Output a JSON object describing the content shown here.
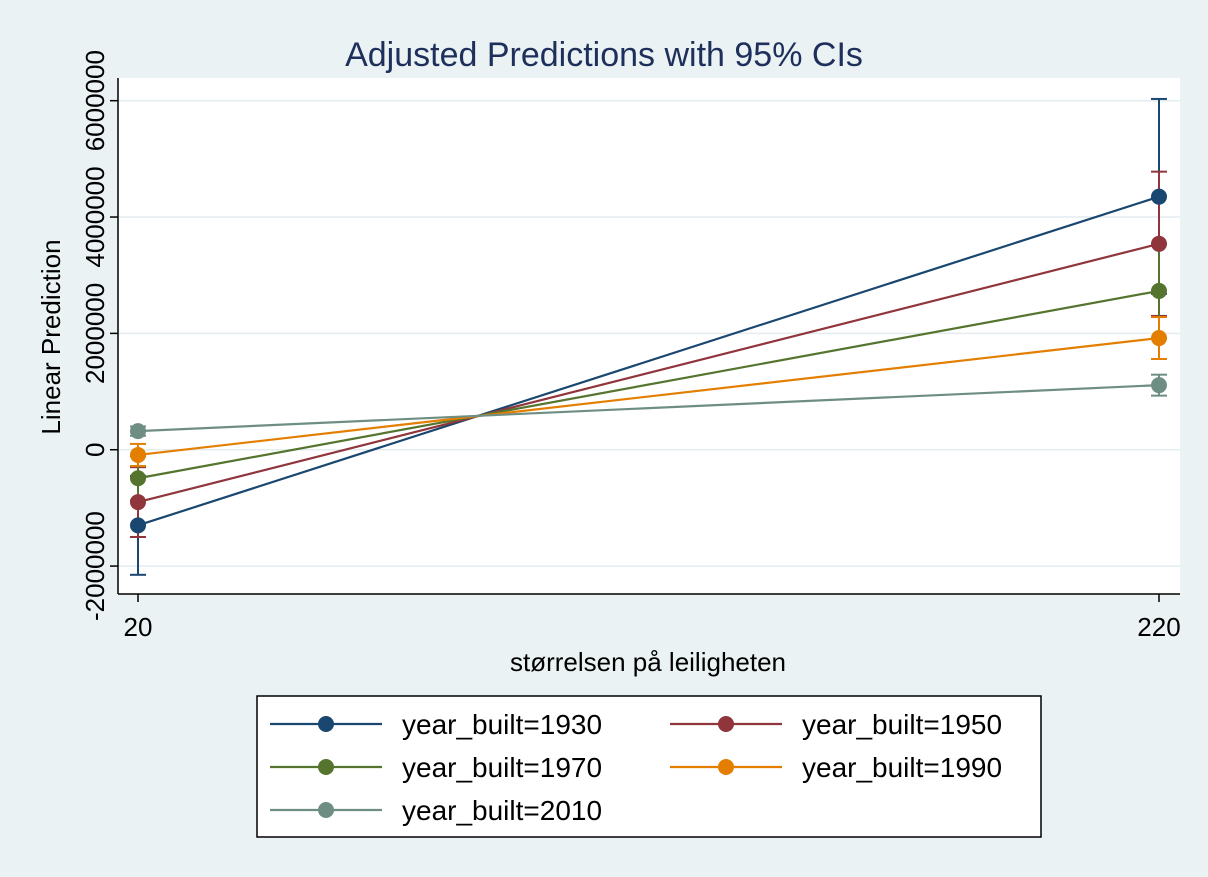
{
  "chart_data": {
    "type": "line",
    "title": "Adjusted Predictions with 95% CIs",
    "xlabel": "størrelsen på leiligheten",
    "ylabel": "Linear Prediction",
    "x": [
      20,
      220
    ],
    "x_ticks": [
      20,
      220
    ],
    "y_ticks": [
      -2000000,
      0,
      2000000,
      4000000,
      6000000
    ],
    "y_tick_labels": [
      "-2000000",
      "0",
      "2000000",
      "4000000",
      "6000000"
    ],
    "xlim": [
      20,
      220
    ],
    "ylim": [
      -2480000,
      6390000
    ],
    "grid": true,
    "legend_position": "bottom",
    "error_bars": "95% CI",
    "series": [
      {
        "name": "year_built=1930",
        "color": "#1a476f",
        "values": [
          -1300000,
          4350000
        ],
        "ci_low": [
          -2150000,
          2680000
        ],
        "ci_high": [
          -450000,
          6030000
        ]
      },
      {
        "name": "year_built=1950",
        "color": "#90353b",
        "values": [
          -900000,
          3540000
        ],
        "ci_low": [
          -1500000,
          2300000
        ],
        "ci_high": [
          -300000,
          4780000
        ]
      },
      {
        "name": "year_built=1970",
        "color": "#55752f",
        "values": [
          -490000,
          2730000
        ],
        "ci_low": [
          -870000,
          1920000
        ],
        "ci_high": [
          -110000,
          3540000
        ]
      },
      {
        "name": "year_built=1990",
        "color": "#e37e00",
        "values": [
          -90000,
          1920000
        ],
        "ci_low": [
          -280000,
          1560000
        ],
        "ci_high": [
          100000,
          2280000
        ]
      },
      {
        "name": "year_built=2010",
        "color": "#6e8e84",
        "values": [
          320000,
          1110000
        ],
        "ci_low": [
          240000,
          930000
        ],
        "ci_high": [
          400000,
          1290000
        ]
      }
    ]
  }
}
